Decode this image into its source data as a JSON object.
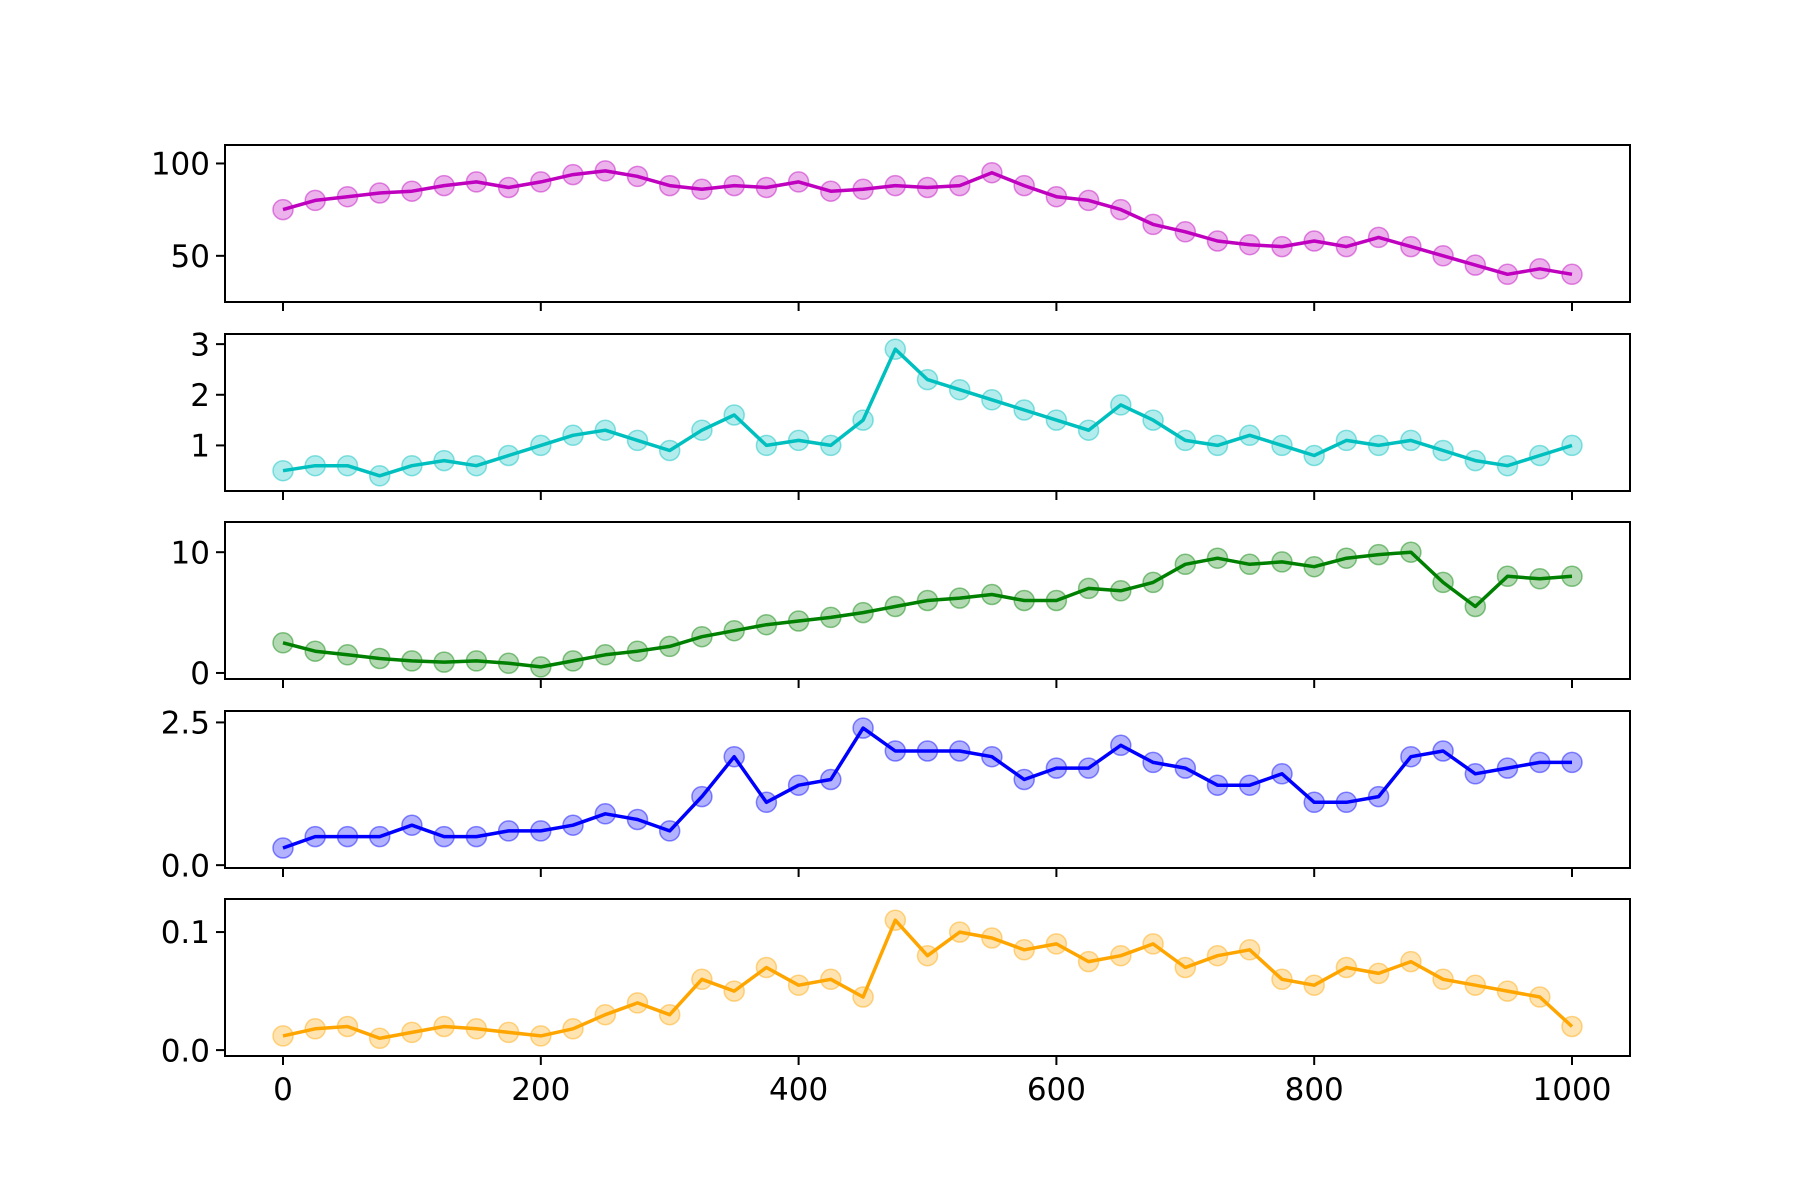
{
  "chart_data": [
    {
      "type": "line",
      "panel": 1,
      "markers": "circle",
      "color": "#bf00bf",
      "xlim": [
        -45,
        1045
      ],
      "ylim": [
        25,
        110
      ],
      "yticks": [
        50,
        100
      ],
      "ytick_labels": [
        "50",
        "100"
      ],
      "xticks": [
        0,
        200,
        400,
        600,
        800,
        1000
      ],
      "xtick_labels": [],
      "series": [
        {
          "x": [
            0,
            25,
            50,
            75,
            100,
            125,
            150,
            175,
            200,
            225,
            250,
            275,
            300,
            325,
            350,
            375,
            400,
            425,
            450,
            475,
            500,
            525,
            550,
            575,
            600,
            625,
            650,
            675,
            700,
            725,
            750,
            775,
            800,
            825,
            850,
            875,
            900,
            925,
            950,
            975,
            1000
          ],
          "y": [
            75,
            80,
            82,
            84,
            85,
            88,
            90,
            87,
            90,
            94,
            96,
            93,
            88,
            86,
            88,
            87,
            90,
            85,
            86,
            88,
            87,
            88,
            95,
            88,
            82,
            80,
            75,
            67,
            63,
            58,
            56,
            55,
            58,
            55,
            60,
            55,
            50,
            45,
            40,
            43,
            40
          ]
        }
      ]
    },
    {
      "type": "line",
      "panel": 2,
      "markers": "circle",
      "color": "#00bfbf",
      "xlim": [
        -45,
        1045
      ],
      "ylim": [
        0.1,
        3.2
      ],
      "yticks": [
        1,
        2,
        3
      ],
      "ytick_labels": [
        "1",
        "2",
        "3"
      ],
      "xticks": [
        0,
        200,
        400,
        600,
        800,
        1000
      ],
      "xtick_labels": [],
      "series": [
        {
          "x": [
            0,
            25,
            50,
            75,
            100,
            125,
            150,
            175,
            200,
            225,
            250,
            275,
            300,
            325,
            350,
            375,
            400,
            425,
            450,
            475,
            500,
            525,
            550,
            575,
            600,
            625,
            650,
            675,
            700,
            725,
            750,
            775,
            800,
            825,
            850,
            875,
            900,
            925,
            950,
            975,
            1000
          ],
          "y": [
            0.5,
            0.6,
            0.6,
            0.4,
            0.6,
            0.7,
            0.6,
            0.8,
            1.0,
            1.2,
            1.3,
            1.1,
            0.9,
            1.3,
            1.6,
            1.0,
            1.1,
            1.0,
            1.5,
            2.9,
            2.3,
            2.1,
            1.9,
            1.7,
            1.5,
            1.3,
            1.8,
            1.5,
            1.1,
            1.0,
            1.2,
            1.0,
            0.8,
            1.1,
            1.0,
            1.1,
            0.9,
            0.7,
            0.6,
            0.8,
            1.0
          ]
        }
      ]
    },
    {
      "type": "line",
      "panel": 3,
      "markers": "circle",
      "color": "#008000",
      "xlim": [
        -45,
        1045
      ],
      "ylim": [
        -0.5,
        12.5
      ],
      "yticks": [
        0,
        10
      ],
      "ytick_labels": [
        "0",
        "10"
      ],
      "xticks": [
        0,
        200,
        400,
        600,
        800,
        1000
      ],
      "xtick_labels": [],
      "series": [
        {
          "x": [
            0,
            25,
            50,
            75,
            100,
            125,
            150,
            175,
            200,
            225,
            250,
            275,
            300,
            325,
            350,
            375,
            400,
            425,
            450,
            475,
            500,
            525,
            550,
            575,
            600,
            625,
            650,
            675,
            700,
            725,
            750,
            775,
            800,
            825,
            850,
            875,
            900,
            925,
            950,
            975,
            1000
          ],
          "y": [
            2.5,
            1.8,
            1.5,
            1.2,
            1.0,
            0.9,
            1.0,
            0.8,
            0.5,
            1.0,
            1.5,
            1.8,
            2.2,
            3.0,
            3.5,
            4.0,
            4.3,
            4.6,
            5.0,
            5.5,
            6.0,
            6.2,
            6.5,
            6.0,
            6.0,
            7.0,
            6.8,
            7.5,
            9.0,
            9.5,
            9.0,
            9.2,
            8.8,
            9.5,
            9.8,
            10.0,
            7.5,
            5.5,
            8.0,
            7.8,
            8.0
          ]
        }
      ]
    },
    {
      "type": "line",
      "panel": 4,
      "markers": "circle",
      "color": "#0000ff",
      "xlim": [
        -45,
        1045
      ],
      "ylim": [
        -0.05,
        2.7
      ],
      "yticks": [
        0.0,
        2.5
      ],
      "ytick_labels": [
        "0.0",
        "2.5"
      ],
      "xticks": [
        0,
        200,
        400,
        600,
        800,
        1000
      ],
      "xtick_labels": [],
      "series": [
        {
          "x": [
            0,
            25,
            50,
            75,
            100,
            125,
            150,
            175,
            200,
            225,
            250,
            275,
            300,
            325,
            350,
            375,
            400,
            425,
            450,
            475,
            500,
            525,
            550,
            575,
            600,
            625,
            650,
            675,
            700,
            725,
            750,
            775,
            800,
            825,
            850,
            875,
            900,
            925,
            950,
            975,
            1000
          ],
          "y": [
            0.3,
            0.5,
            0.5,
            0.5,
            0.7,
            0.5,
            0.5,
            0.6,
            0.6,
            0.7,
            0.9,
            0.8,
            0.6,
            1.2,
            1.9,
            1.1,
            1.4,
            1.5,
            2.4,
            2.0,
            2.0,
            2.0,
            1.9,
            1.5,
            1.7,
            1.7,
            2.1,
            1.8,
            1.7,
            1.4,
            1.4,
            1.6,
            1.1,
            1.1,
            1.2,
            1.9,
            2.0,
            1.6,
            1.7,
            1.8,
            1.8
          ]
        }
      ]
    },
    {
      "type": "line",
      "panel": 5,
      "markers": "circle",
      "color": "#ffa500",
      "xlim": [
        -45,
        1045
      ],
      "ylim": [
        -0.005,
        0.128
      ],
      "yticks": [
        0.0,
        0.1
      ],
      "ytick_labels": [
        "0.0",
        "0.1"
      ],
      "xticks": [
        0,
        200,
        400,
        600,
        800,
        1000
      ],
      "xtick_labels": [
        "0",
        "200",
        "400",
        "600",
        "800",
        "1000"
      ],
      "series": [
        {
          "x": [
            0,
            25,
            50,
            75,
            100,
            125,
            150,
            175,
            200,
            225,
            250,
            275,
            300,
            325,
            350,
            375,
            400,
            425,
            450,
            475,
            500,
            525,
            550,
            575,
            600,
            625,
            650,
            675,
            700,
            725,
            750,
            775,
            800,
            825,
            850,
            875,
            900,
            925,
            950,
            975,
            1000
          ],
          "y": [
            0.012,
            0.018,
            0.02,
            0.01,
            0.015,
            0.02,
            0.018,
            0.015,
            0.012,
            0.018,
            0.03,
            0.04,
            0.03,
            0.06,
            0.05,
            0.07,
            0.055,
            0.06,
            0.045,
            0.11,
            0.08,
            0.1,
            0.095,
            0.085,
            0.09,
            0.075,
            0.08,
            0.09,
            0.07,
            0.08,
            0.085,
            0.06,
            0.055,
            0.07,
            0.065,
            0.075,
            0.06,
            0.055,
            0.05,
            0.045,
            0.02
          ]
        }
      ]
    }
  ]
}
